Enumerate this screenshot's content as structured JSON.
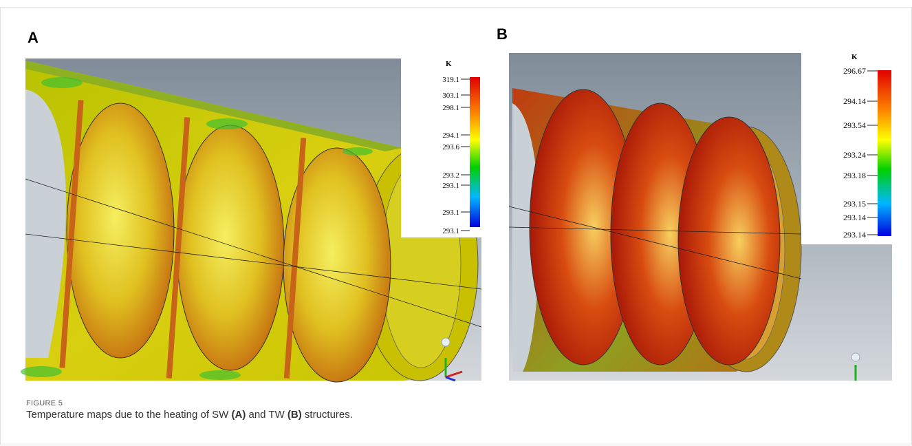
{
  "figure": {
    "label": "FIGURE 5",
    "caption": [
      "Temperature maps due to the heating of SW ",
      "(A)",
      " and TW ",
      "(B)",
      " structures."
    ]
  },
  "panels": [
    {
      "label": "A",
      "legend": {
        "unit": "K",
        "ticks": [
          "319.1",
          "303.1",
          "298.1",
          "294.1",
          "293.6",
          "293.2",
          "293.1",
          "293.1",
          "293.1"
        ]
      }
    },
    {
      "label": "B",
      "legend": {
        "unit": "K",
        "ticks": [
          "296.67",
          "294.14",
          "293.54",
          "293.24",
          "293.18",
          "293.15",
          "293.14",
          "293.14"
        ]
      }
    }
  ]
}
